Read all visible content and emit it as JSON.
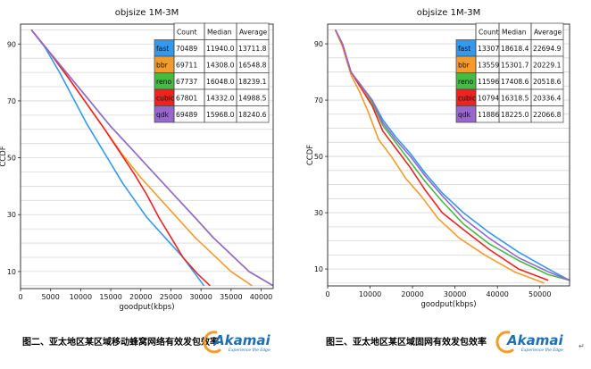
{
  "chart_data": [
    {
      "type": "line",
      "title": "objsize 1M-3M",
      "xlabel": "goodput(kbps)",
      "ylabel": "CCDF",
      "xlim": [
        0,
        42000
      ],
      "ylim": [
        4,
        97
      ],
      "xticks": [
        0,
        5000,
        10000,
        15000,
        20000,
        25000,
        30000,
        35000,
        40000
      ],
      "xticklabels": [
        "0",
        "5000",
        "10000",
        "15000",
        "20000",
        "25000",
        "30000",
        "35000",
        "40000"
      ],
      "yticks": [
        10,
        30,
        50,
        70,
        90
      ],
      "yticklabels": [
        "10",
        "30",
        "50",
        "70",
        "90"
      ],
      "grid": true,
      "legend_placement": "top-right table",
      "table_headers": [
        "",
        "Count",
        "Median",
        "Average"
      ],
      "series": [
        {
          "name": "fast",
          "color": "#3399ee",
          "count": "70489",
          "median": "11940.0",
          "average": "13711.8",
          "x": [
            1800,
            4000,
            6500,
            9000,
            11000,
            13000,
            15000,
            17000,
            19000,
            21000,
            24000,
            27000,
            30500
          ],
          "y": [
            95,
            89,
            80,
            70,
            62,
            55,
            48,
            41,
            35,
            29,
            22,
            15,
            5
          ]
        },
        {
          "name": "bbr",
          "color": "#f39c2b",
          "count": "69711",
          "median": "14308.0",
          "average": "16548.8",
          "x": [
            1800,
            4500,
            8000,
            11000,
            14000,
            17000,
            20000,
            23000,
            26000,
            29000,
            32000,
            35000,
            38500
          ],
          "y": [
            95,
            88,
            78,
            69,
            60,
            51,
            43,
            36,
            29,
            22,
            16,
            10,
            5
          ]
        },
        {
          "name": "reno",
          "color": "#44bb44",
          "count": "67737",
          "median": "16048.0",
          "average": "18239.1",
          "x": [
            1800,
            4500,
            8000,
            11500,
            15000,
            18500,
            22000,
            25500,
            29000,
            32000,
            35000,
            38000,
            42000
          ],
          "y": [
            95,
            88,
            79,
            70,
            61,
            53,
            45,
            37,
            29,
            22,
            16,
            10,
            5
          ]
        },
        {
          "name": "cubic",
          "color": "#ee2222",
          "count": "67801",
          "median": "14332.0",
          "average": "14988.5",
          "x": [
            1800,
            4500,
            8000,
            11000,
            14000,
            16500,
            19000,
            21000,
            23000,
            25000,
            27000,
            29500,
            31500
          ],
          "y": [
            95,
            88,
            78,
            69,
            60,
            52,
            44,
            37,
            29,
            22,
            15,
            9,
            5
          ]
        },
        {
          "name": "qdk",
          "color": "#9966cc",
          "count": "69489",
          "median": "15968.0",
          "average": "18240.6",
          "x": [
            1800,
            4500,
            8000,
            11500,
            15000,
            18500,
            22000,
            25500,
            29000,
            32000,
            35000,
            38000,
            42000
          ],
          "y": [
            95,
            88,
            79,
            70,
            61,
            53,
            45,
            37,
            29,
            22,
            16,
            10,
            5
          ]
        }
      ]
    },
    {
      "type": "line",
      "title": "objsize 1M-3M",
      "xlabel": "goodput(kbps)",
      "ylabel": "CCDF",
      "xlim": [
        0,
        57000
      ],
      "ylim": [
        4,
        97
      ],
      "xticks": [
        0,
        10000,
        20000,
        30000,
        40000,
        50000
      ],
      "xticklabels": [
        "0",
        "10000",
        "20000",
        "30000",
        "40000",
        "50000"
      ],
      "yticks": [
        10,
        30,
        50,
        70,
        90
      ],
      "yticklabels": [
        "10",
        "30",
        "50",
        "70",
        "90"
      ],
      "grid": true,
      "legend_placement": "top-right table",
      "table_headers": [
        "",
        "Count",
        "Median",
        "Average"
      ],
      "series": [
        {
          "name": "fast",
          "color": "#3399ee",
          "count": "13307",
          "median": "18618.4",
          "average": "22694.9",
          "x": [
            1800,
            3500,
            5500,
            8000,
            10500,
            13000,
            16000,
            19500,
            23000,
            27000,
            32000,
            38000,
            45000,
            52000,
            57000
          ],
          "y": [
            95,
            90,
            80,
            75,
            70,
            63,
            57,
            51,
            44,
            37,
            30,
            23,
            16,
            10,
            6
          ]
        },
        {
          "name": "bbr",
          "color": "#f39c2b",
          "count": "13559",
          "median": "15301.7",
          "average": "20229.1",
          "x": [
            1800,
            3500,
            5500,
            7500,
            9500,
            12000,
            15000,
            18500,
            22000,
            26000,
            31000,
            37000,
            44000,
            51000
          ],
          "y": [
            95,
            89,
            79,
            73,
            66,
            56,
            50,
            42,
            36,
            28,
            21,
            15,
            9,
            5
          ]
        },
        {
          "name": "reno",
          "color": "#44bb44",
          "count": "11596",
          "median": "17408.6",
          "average": "20518.6",
          "x": [
            1800,
            3500,
            5500,
            8000,
            10500,
            13000,
            16000,
            19500,
            23000,
            27000,
            32000,
            38000,
            45000,
            52000,
            57000
          ],
          "y": [
            95,
            90,
            80,
            75,
            69,
            61,
            55,
            48,
            41,
            34,
            26,
            19,
            13,
            8,
            6
          ]
        },
        {
          "name": "cubic",
          "color": "#ee2222",
          "count": "10794",
          "median": "16318.5",
          "average": "20336.4",
          "x": [
            1800,
            3500,
            5500,
            8000,
            10500,
            13000,
            16000,
            19500,
            23000,
            27000,
            32000,
            38000,
            45000,
            52000
          ],
          "y": [
            95,
            90,
            80,
            74,
            68,
            59,
            53,
            46,
            38,
            30,
            24,
            17,
            10,
            6
          ]
        },
        {
          "name": "qdk",
          "color": "#9966cc",
          "count": "11886",
          "median": "18225.0",
          "average": "22066.8",
          "x": [
            1800,
            3500,
            5500,
            8000,
            10500,
            13000,
            16000,
            19500,
            23000,
            27000,
            32000,
            38000,
            45000,
            52000,
            57000
          ],
          "y": [
            95,
            90,
            80,
            75,
            70,
            62,
            56,
            50,
            43,
            36,
            28,
            21,
            14,
            9,
            6
          ]
        }
      ]
    }
  ],
  "captions": {
    "left": "图二、亚太地区某区域移动蜂窝网络有效发包效率",
    "right": "图三、亚太地区某区域固网有效发包效率"
  },
  "logo": {
    "text": "Akamai",
    "tagline": "Experience the Edge",
    "color": "#1f6fb5",
    "accent": "#f39c2b"
  },
  "corner_mark": "↵"
}
